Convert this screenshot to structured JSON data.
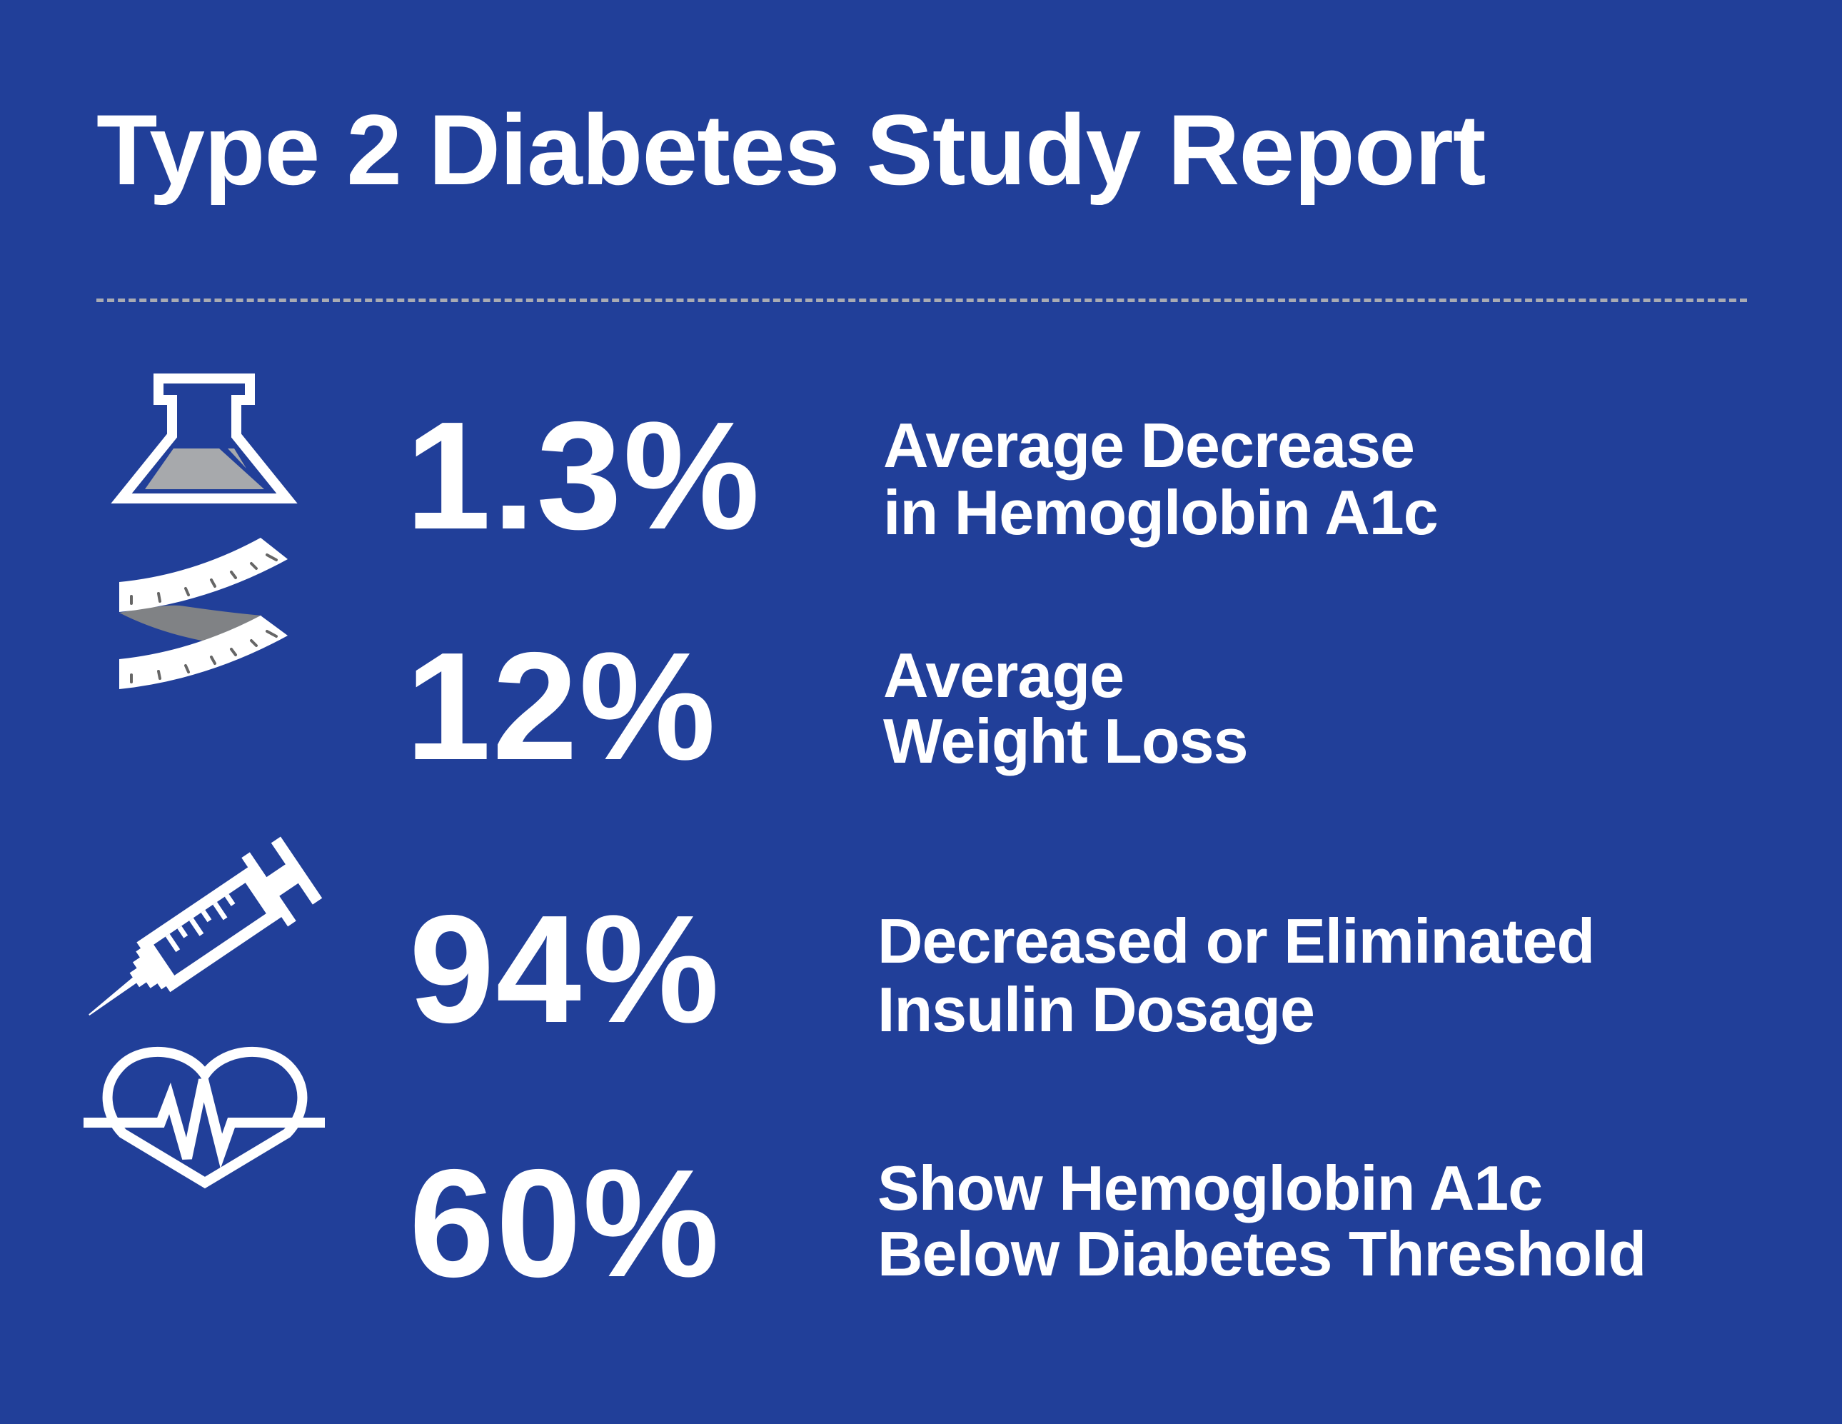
{
  "title": "Type 2 Diabetes Study Report",
  "colors": {
    "background": "#213f99",
    "text": "#ffffff",
    "divider": "#a9abb3",
    "accent_gray": "#a7a9ac"
  },
  "stats": [
    {
      "icon": "flask-icon",
      "value": "1.3%",
      "lines": [
        "Average Decrease",
        "in Hemoglobin A1c"
      ]
    },
    {
      "icon": "measuring-tape-icon",
      "value": "12%",
      "lines": [
        "Average",
        "Weight Loss"
      ]
    },
    {
      "icon": "syringe-icon",
      "value": "94%",
      "lines": [
        "Decreased or Eliminated",
        "Insulin Dosage"
      ]
    },
    {
      "icon": "heart-pulse-icon",
      "value": "60%",
      "lines": [
        "Show Hemoglobin A1c",
        "Below Diabetes Threshold"
      ]
    }
  ]
}
